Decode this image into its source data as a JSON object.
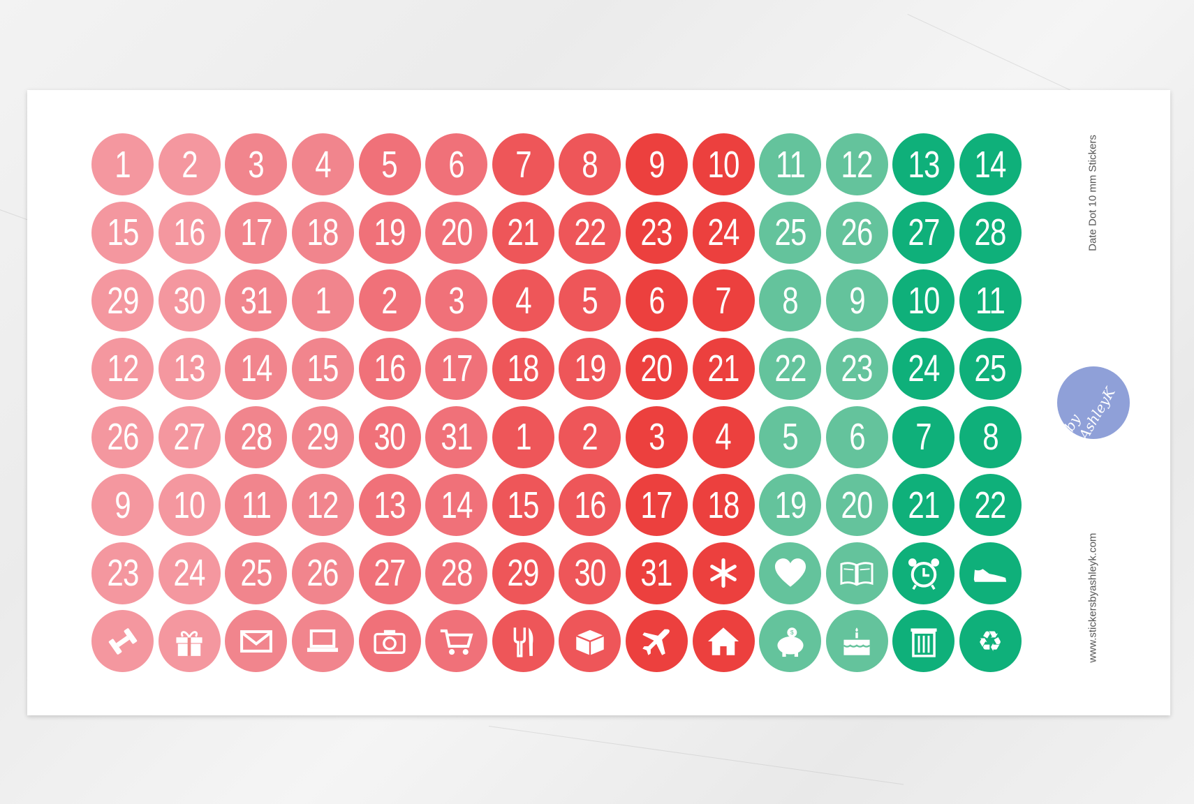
{
  "sheet": {
    "title": "Date Dot 10 mm Stickers",
    "website": "www.stickersbyashleyk.com",
    "logo_text": "by AshleyK"
  },
  "column_colors": [
    "#f4979f",
    "#f4979f",
    "#f1858d",
    "#f1858d",
    "#f07179",
    "#f07179",
    "#ee5659",
    "#ee5659",
    "#ec403e",
    "#ec403e",
    "#64c39c",
    "#64c39c",
    "#0fb07a",
    "#0fb07a"
  ],
  "rows": [
    [
      "1",
      "2",
      "3",
      "4",
      "5",
      "6",
      "7",
      "8",
      "9",
      "10",
      "11",
      "12",
      "13",
      "14"
    ],
    [
      "15",
      "16",
      "17",
      "18",
      "19",
      "20",
      "21",
      "22",
      "23",
      "24",
      "25",
      "26",
      "27",
      "28"
    ],
    [
      "29",
      "30",
      "31",
      "1",
      "2",
      "3",
      "4",
      "5",
      "6",
      "7",
      "8",
      "9",
      "10",
      "11"
    ],
    [
      "12",
      "13",
      "14",
      "15",
      "16",
      "17",
      "18",
      "19",
      "20",
      "21",
      "22",
      "23",
      "24",
      "25"
    ],
    [
      "26",
      "27",
      "28",
      "29",
      "30",
      "31",
      "1",
      "2",
      "3",
      "4",
      "5",
      "6",
      "7",
      "8"
    ],
    [
      "9",
      "10",
      "11",
      "12",
      "13",
      "14",
      "15",
      "16",
      "17",
      "18",
      "19",
      "20",
      "21",
      "22"
    ],
    [
      "23",
      "24",
      "25",
      "26",
      "27",
      "28",
      "29",
      "30",
      "31",
      "icon:asterisk",
      "icon:heart",
      "icon:book",
      "icon:alarm-clock",
      "icon:sneaker"
    ],
    [
      "icon:dumbbell",
      "icon:gift",
      "icon:envelope",
      "icon:laptop",
      "icon:camera",
      "icon:shopping-cart",
      "icon:fork-knife",
      "icon:box",
      "icon:airplane",
      "icon:house",
      "icon:piggy-bank",
      "icon:cake",
      "icon:trash-can",
      "icon:recycle"
    ]
  ]
}
